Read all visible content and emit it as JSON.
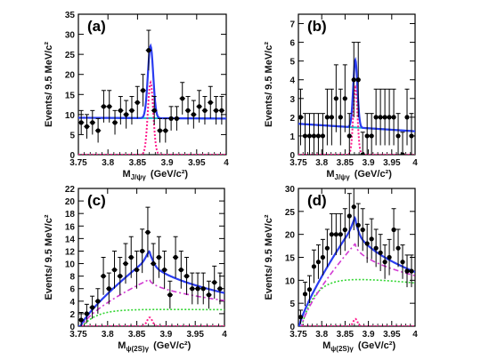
{
  "colors": {
    "total_fit": "#2a3cf0",
    "background_fit": "#20b8c8",
    "signal": "#ff1a8c",
    "component_magenta": "#d23ad2",
    "component_green": "#33d633",
    "data_points": "#000000",
    "axes": "#000000"
  },
  "chart_data": [
    {
      "type": "scatter",
      "panel_label": "(a)",
      "ylabel": "Events/ 9.5 MeV/c²",
      "xlabel": "M",
      "xlabel_sub": "J/ψγ",
      "xlabel_unit": "(GeV/c²)",
      "xlim": [
        3.75,
        4.0
      ],
      "ylim": [
        0,
        35
      ],
      "xticks": [
        "3.75",
        "3.8",
        "3.85",
        "3.9",
        "3.95",
        "4"
      ],
      "yticks": [
        "0",
        "5",
        "10",
        "15",
        "20",
        "25",
        "30",
        "35"
      ],
      "points": [
        {
          "x": 3.7548,
          "y": 8,
          "err": 3
        },
        {
          "x": 3.7643,
          "y": 7,
          "err": 3
        },
        {
          "x": 3.7738,
          "y": 8,
          "err": 3
        },
        {
          "x": 3.7833,
          "y": 6,
          "err": 3
        },
        {
          "x": 3.7928,
          "y": 12,
          "err": 4
        },
        {
          "x": 3.8023,
          "y": 12,
          "err": 4
        },
        {
          "x": 3.8118,
          "y": 8,
          "err": 3
        },
        {
          "x": 3.8213,
          "y": 11,
          "err": 3.5
        },
        {
          "x": 3.8308,
          "y": 10,
          "err": 3.5
        },
        {
          "x": 3.8403,
          "y": 11,
          "err": 3.5
        },
        {
          "x": 3.8498,
          "y": 13,
          "err": 4
        },
        {
          "x": 3.8593,
          "y": 16,
          "err": 4
        },
        {
          "x": 3.8688,
          "y": 26,
          "err": 5
        },
        {
          "x": 3.8783,
          "y": 11,
          "err": 3.5
        },
        {
          "x": 3.8878,
          "y": 6,
          "err": 3
        },
        {
          "x": 3.8973,
          "y": 6,
          "err": 3
        },
        {
          "x": 3.9068,
          "y": 9,
          "err": 3
        },
        {
          "x": 3.9163,
          "y": 9,
          "err": 3
        },
        {
          "x": 3.9258,
          "y": 14,
          "err": 4
        },
        {
          "x": 3.9353,
          "y": 11,
          "err": 3.5
        },
        {
          "x": 3.9448,
          "y": 10,
          "err": 3.5
        },
        {
          "x": 3.9543,
          "y": 12,
          "err": 4
        },
        {
          "x": 3.9638,
          "y": 11,
          "err": 3.5
        },
        {
          "x": 3.9733,
          "y": 13,
          "err": 4
        },
        {
          "x": 3.9828,
          "y": 11,
          "err": 3.5
        },
        {
          "x": 3.9923,
          "y": 11,
          "err": 3.5
        }
      ],
      "curves": {
        "background": {
          "kind": "linear",
          "y0": 9.2,
          "y1": 9.0
        },
        "signal": {
          "kind": "gauss",
          "mu": 3.872,
          "sigma": 0.0045,
          "amp": 18
        },
        "total": {
          "kind": "sum_bg_signal"
        }
      }
    },
    {
      "type": "scatter",
      "panel_label": "(b)",
      "ylabel": "Events/ 9.5 MeV/c²",
      "xlabel": "M",
      "xlabel_sub": "J/ψγ",
      "xlabel_unit": "(GeV/c²)",
      "xlim": [
        3.75,
        4.0
      ],
      "ylim": [
        0,
        7.5
      ],
      "xticks": [
        "3.75",
        "3.8",
        "3.85",
        "3.9",
        "3.95",
        "4"
      ],
      "yticks": [
        "0",
        "1",
        "2",
        "3",
        "4",
        "5",
        "6",
        "7"
      ],
      "points": [
        {
          "x": 3.7548,
          "y": 2,
          "err": 1.5
        },
        {
          "x": 3.7643,
          "y": 1,
          "err": 1.2
        },
        {
          "x": 3.7738,
          "y": 1,
          "err": 1.2
        },
        {
          "x": 3.7833,
          "y": 1,
          "err": 1.2
        },
        {
          "x": 3.7928,
          "y": 1,
          "err": 1.2
        },
        {
          "x": 3.8023,
          "y": 1,
          "err": 1.2
        },
        {
          "x": 3.8118,
          "y": 2,
          "err": 1.5
        },
        {
          "x": 3.8213,
          "y": 2,
          "err": 1.5
        },
        {
          "x": 3.8308,
          "y": 3,
          "err": 1.8
        },
        {
          "x": 3.8403,
          "y": 2,
          "err": 1.5
        },
        {
          "x": 3.8498,
          "y": 3,
          "err": 1.8
        },
        {
          "x": 3.8593,
          "y": 1,
          "err": 1.2
        },
        {
          "x": 3.8688,
          "y": 4,
          "err": 2
        },
        {
          "x": 3.8783,
          "y": 4,
          "err": 2
        },
        {
          "x": 3.8878,
          "y": 0,
          "err": 1.2
        },
        {
          "x": 3.8973,
          "y": 1,
          "err": 1.2
        },
        {
          "x": 3.9068,
          "y": 1,
          "err": 1.2
        },
        {
          "x": 3.9163,
          "y": 2,
          "err": 1.5
        },
        {
          "x": 3.9258,
          "y": 2,
          "err": 1.5
        },
        {
          "x": 3.9353,
          "y": 2,
          "err": 1.5
        },
        {
          "x": 3.9448,
          "y": 2,
          "err": 1.5
        },
        {
          "x": 3.9543,
          "y": 2,
          "err": 1.5
        },
        {
          "x": 3.9638,
          "y": 1,
          "err": 1.2
        },
        {
          "x": 3.9733,
          "y": 0,
          "err": 1.2
        },
        {
          "x": 3.9828,
          "y": 2,
          "err": 1.5
        },
        {
          "x": 3.9923,
          "y": 1,
          "err": 1.2
        }
      ],
      "curves": {
        "background": {
          "kind": "linear",
          "y0": 1.65,
          "y1": 1.25
        },
        "signal": {
          "kind": "gauss",
          "mu": 3.872,
          "sigma": 0.0045,
          "amp": 3.6
        },
        "total": {
          "kind": "sum_bg_signal"
        }
      }
    },
    {
      "type": "scatter",
      "panel_label": "(c)",
      "ylabel": "Events/ 9.5 MeV/c²",
      "xlabel": "M",
      "xlabel_sub": "ψ(2S)γ",
      "xlabel_unit": "(GeV/c²)",
      "xlim": [
        3.75,
        4.0
      ],
      "ylim": [
        0,
        22
      ],
      "xticks": [
        "3.75",
        "3.8",
        "3.85",
        "3.9",
        "3.95",
        "4"
      ],
      "yticks": [
        "0",
        "2",
        "4",
        "6",
        "8",
        "10",
        "12",
        "14",
        "16",
        "18",
        "20",
        "22"
      ],
      "points": [
        {
          "x": 3.7548,
          "y": 1,
          "err": 1.2
        },
        {
          "x": 3.7643,
          "y": 2,
          "err": 1.5
        },
        {
          "x": 3.7738,
          "y": 3,
          "err": 1.8
        },
        {
          "x": 3.7833,
          "y": 4,
          "err": 2
        },
        {
          "x": 3.7928,
          "y": 8,
          "err": 3
        },
        {
          "x": 3.8023,
          "y": 6,
          "err": 2.5
        },
        {
          "x": 3.8118,
          "y": 9,
          "err": 3
        },
        {
          "x": 3.8213,
          "y": 8,
          "err": 3
        },
        {
          "x": 3.8308,
          "y": 10,
          "err": 3.2
        },
        {
          "x": 3.8403,
          "y": 11,
          "err": 3.3
        },
        {
          "x": 3.8498,
          "y": 9,
          "err": 3
        },
        {
          "x": 3.8593,
          "y": 12,
          "err": 3.5
        },
        {
          "x": 3.8688,
          "y": 15,
          "err": 4
        },
        {
          "x": 3.8783,
          "y": 10,
          "err": 3.2
        },
        {
          "x": 3.8878,
          "y": 11,
          "err": 3.3
        },
        {
          "x": 3.8973,
          "y": 9,
          "err": 3
        },
        {
          "x": 3.9068,
          "y": 5,
          "err": 2.2
        },
        {
          "x": 3.9163,
          "y": 11,
          "err": 3.3
        },
        {
          "x": 3.9258,
          "y": 9,
          "err": 3
        },
        {
          "x": 3.9353,
          "y": 8,
          "err": 3
        },
        {
          "x": 3.9448,
          "y": 6,
          "err": 2.5
        },
        {
          "x": 3.9543,
          "y": 6,
          "err": 2.5
        },
        {
          "x": 3.9638,
          "y": 6,
          "err": 2.5
        },
        {
          "x": 3.9733,
          "y": 5,
          "err": 2.2
        },
        {
          "x": 3.9828,
          "y": 7,
          "err": 2.6
        },
        {
          "x": 3.9923,
          "y": 6,
          "err": 2.5
        }
      ],
      "curves": {
        "green": {
          "kind": "rise",
          "xt": 3.757,
          "a": 2.7,
          "k": 40,
          "slope": -1.0
        },
        "magenta": {
          "kind": "peak_bg",
          "x0": 3.757,
          "xp": 3.872,
          "yp": 7.5,
          "y_end": 4.1,
          "rise": 0.7
        },
        "signal": {
          "kind": "gauss",
          "mu": 3.872,
          "sigma": 0.0045,
          "amp": 1.4
        },
        "total": {
          "kind": "peak_bg",
          "x0": 3.754,
          "xp": 3.872,
          "yp": 11.0,
          "y_end": 5.3,
          "rise": 0.8,
          "extra_gauss": 1.0
        }
      }
    },
    {
      "type": "scatter",
      "panel_label": "(d)",
      "ylabel": "Events/ 9.5 MeV/c²",
      "xlabel": "M",
      "xlabel_sub": "ψ(2S)γ",
      "xlabel_unit": "(GeV/c²)",
      "xlim": [
        3.75,
        4.0
      ],
      "ylim": [
        0,
        30
      ],
      "xticks": [
        "3.75",
        "3.8",
        "3.85",
        "3.9",
        "3.95",
        "4"
      ],
      "yticks": [
        "0",
        "5",
        "10",
        "15",
        "20",
        "25",
        "30"
      ],
      "points": [
        {
          "x": 3.7548,
          "y": 2,
          "err": 1.5
        },
        {
          "x": 3.7643,
          "y": 7,
          "err": 2.6
        },
        {
          "x": 3.7738,
          "y": 8,
          "err": 3
        },
        {
          "x": 3.7833,
          "y": 13,
          "err": 3.6
        },
        {
          "x": 3.7928,
          "y": 14,
          "err": 3.7
        },
        {
          "x": 3.8023,
          "y": 15,
          "err": 3.9
        },
        {
          "x": 3.8118,
          "y": 17,
          "err": 4.1
        },
        {
          "x": 3.8213,
          "y": 20,
          "err": 4.5
        },
        {
          "x": 3.8308,
          "y": 20,
          "err": 4.5
        },
        {
          "x": 3.8403,
          "y": 20,
          "err": 4.5
        },
        {
          "x": 3.8498,
          "y": 21,
          "err": 4.6
        },
        {
          "x": 3.8593,
          "y": 24,
          "err": 4.9
        },
        {
          "x": 3.8688,
          "y": 26,
          "err": 5.1
        },
        {
          "x": 3.8783,
          "y": 22,
          "err": 4.7
        },
        {
          "x": 3.8878,
          "y": 21,
          "err": 4.6
        },
        {
          "x": 3.8973,
          "y": 18,
          "err": 4.2
        },
        {
          "x": 3.9068,
          "y": 19,
          "err": 4.4
        },
        {
          "x": 3.9163,
          "y": 17,
          "err": 4.1
        },
        {
          "x": 3.9258,
          "y": 16,
          "err": 4
        },
        {
          "x": 3.9353,
          "y": 14,
          "err": 3.7
        },
        {
          "x": 3.9448,
          "y": 15,
          "err": 3.9
        },
        {
          "x": 3.9543,
          "y": 21,
          "err": 4.6
        },
        {
          "x": 3.9638,
          "y": 17,
          "err": 4.1
        },
        {
          "x": 3.9733,
          "y": 14,
          "err": 3.7
        },
        {
          "x": 3.9828,
          "y": 12,
          "err": 3.5
        },
        {
          "x": 3.9923,
          "y": 12,
          "err": 3.5
        }
      ],
      "curves": {
        "green": {
          "kind": "rise",
          "xt": 3.757,
          "a": 10.6,
          "k": 35,
          "slope": -20
        },
        "magenta": {
          "kind": "peak_bg",
          "x0": 3.757,
          "xp": 3.872,
          "yp": 18.0,
          "y_end": 11.0,
          "rise": 0.75
        },
        "signal": {
          "kind": "gauss",
          "mu": 3.872,
          "sigma": 0.0045,
          "amp": 1.6
        },
        "total": {
          "kind": "peak_bg",
          "x0": 3.752,
          "xp": 3.872,
          "yp": 22.5,
          "y_end": 11.8,
          "rise": 0.8,
          "extra_gauss": 1.2
        }
      }
    }
  ]
}
